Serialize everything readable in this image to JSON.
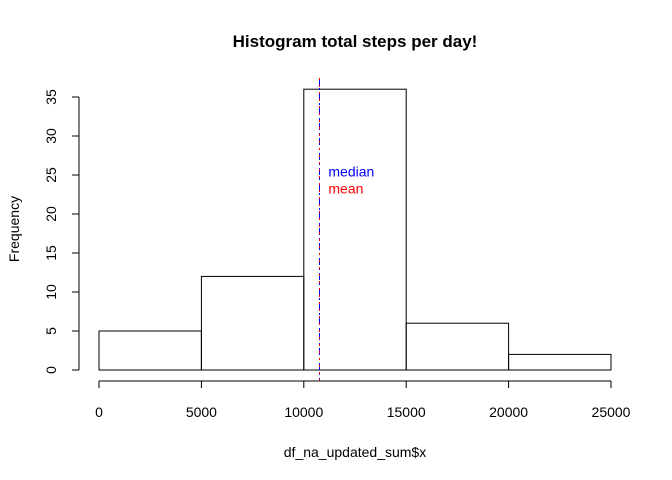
{
  "chart_data": {
    "type": "bar",
    "title": "Histogram total steps per day!",
    "xlabel": "df_na_updated_sum$x",
    "ylabel": "Frequency",
    "bins": [
      {
        "x0": 0,
        "x1": 5000,
        "count": 5
      },
      {
        "x0": 5000,
        "x1": 10000,
        "count": 12
      },
      {
        "x0": 10000,
        "x1": 15000,
        "count": 36
      },
      {
        "x0": 15000,
        "x1": 20000,
        "count": 6
      },
      {
        "x0": 20000,
        "x1": 25000,
        "count": 2
      }
    ],
    "xlim": [
      0,
      25000
    ],
    "ylim": [
      0,
      35
    ],
    "x_ticks": [
      0,
      5000,
      10000,
      15000,
      20000,
      25000
    ],
    "x_tick_labels": [
      "0",
      "5000",
      "10000",
      "15000",
      "20000",
      "25000"
    ],
    "y_ticks": [
      0,
      5,
      10,
      15,
      20,
      25,
      30,
      35
    ],
    "y_tick_labels": [
      "0",
      "5",
      "10",
      "15",
      "20",
      "25",
      "30",
      "35"
    ],
    "vlines": [
      {
        "name": "median",
        "x": 10766.19,
        "color": "#0000ff"
      },
      {
        "name": "mean",
        "x": 10766.19,
        "color": "#ff0000"
      }
    ],
    "annotations": [
      {
        "text": "median",
        "x": 11200,
        "y": 24.8,
        "color": "#0000ff"
      },
      {
        "text": "mean",
        "x": 11200,
        "y": 22.6,
        "color": "#ff0000"
      }
    ],
    "grid": false,
    "legend": "none"
  }
}
